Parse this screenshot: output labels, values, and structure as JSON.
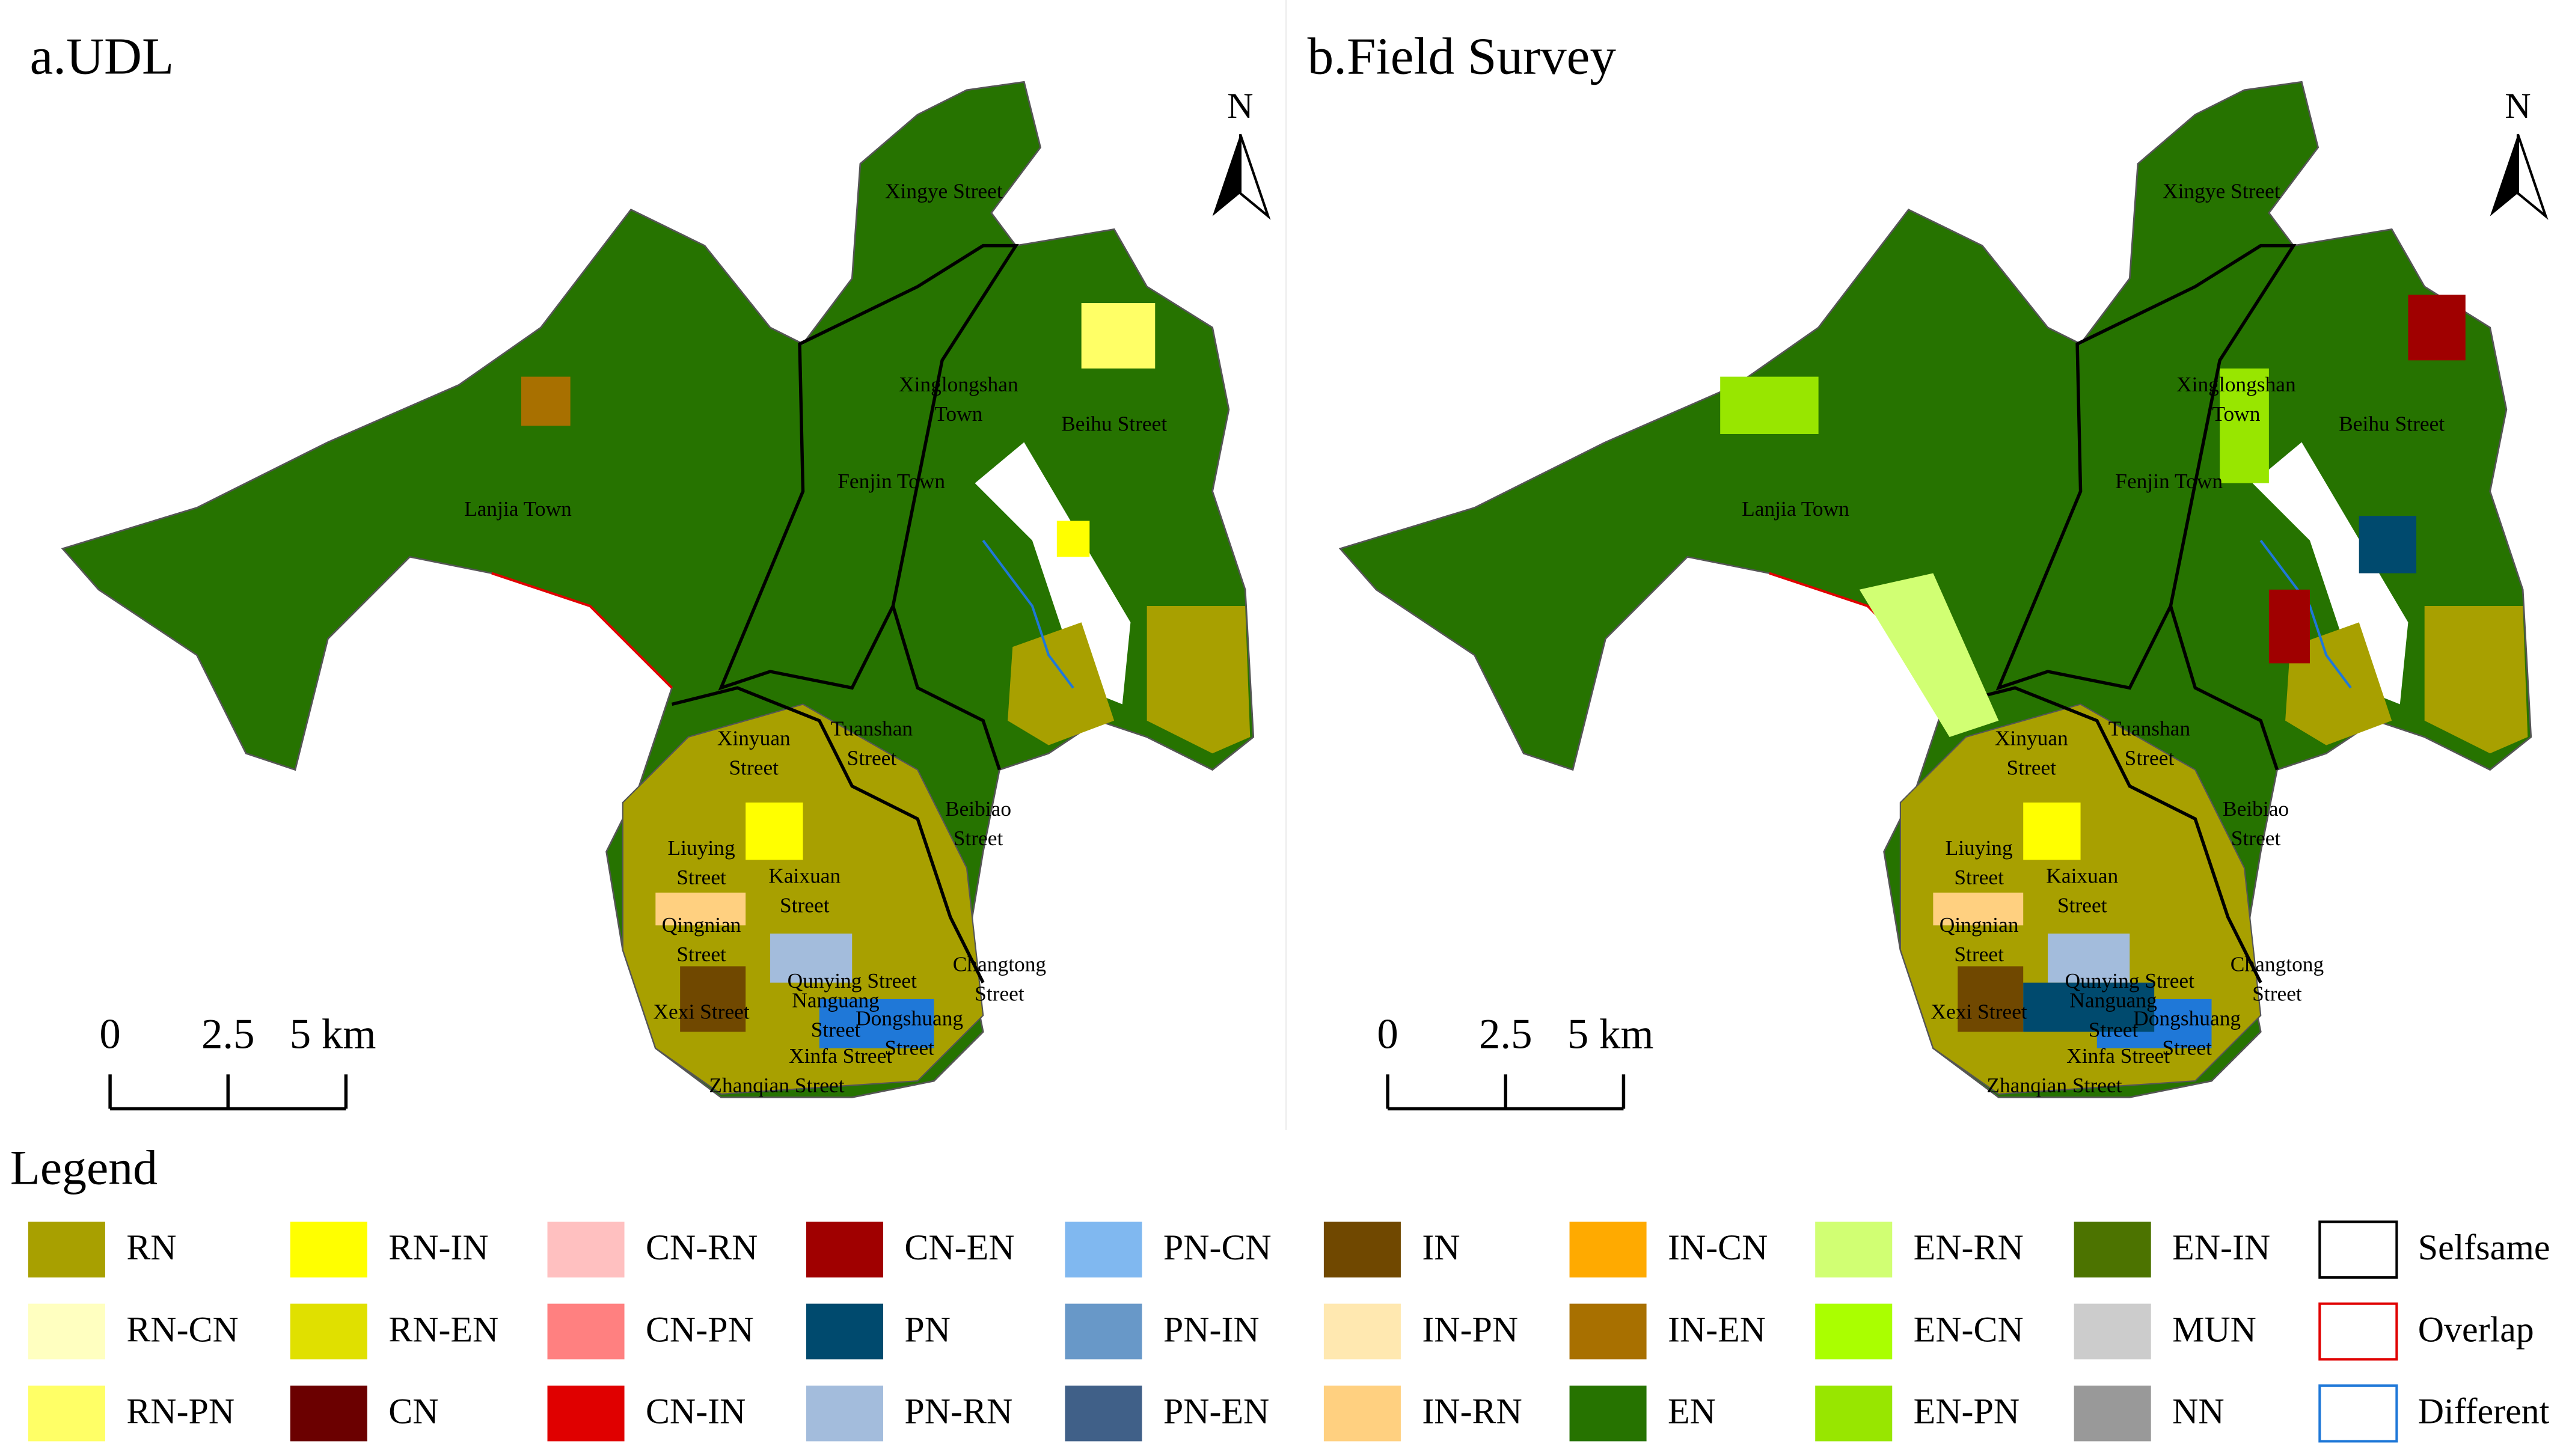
{
  "panels": [
    {
      "title": "a.UDL"
    },
    {
      "title": "b.Field Survey"
    }
  ],
  "north_label": "N",
  "scale_bar": [
    "0",
    "2.5",
    "5 km"
  ],
  "place_labels": [
    {
      "lines": [
        "Xingye Street"
      ]
    },
    {
      "lines": [
        "Xinglongshan",
        "Town"
      ]
    },
    {
      "lines": [
        "Beihu Street"
      ]
    },
    {
      "lines": [
        "Fenjin Town"
      ]
    },
    {
      "lines": [
        "Lanjia Town"
      ]
    },
    {
      "lines": [
        "Xinyuan",
        "Street"
      ]
    },
    {
      "lines": [
        "Tuanshan",
        "Street"
      ]
    },
    {
      "lines": [
        "Beibiao",
        "Street"
      ]
    },
    {
      "lines": [
        "Liuying",
        "Street"
      ]
    },
    {
      "lines": [
        "Kaixuan",
        "Street"
      ]
    },
    {
      "lines": [
        "Qingnian",
        "Street"
      ]
    },
    {
      "lines": [
        "Changtong",
        "Street"
      ]
    },
    {
      "lines": [
        "Qunying Street"
      ]
    },
    {
      "lines": [
        "Xexi Street"
      ]
    },
    {
      "lines": [
        "Nanguang",
        "Street"
      ]
    },
    {
      "lines": [
        "Dongshuang",
        "Street"
      ]
    },
    {
      "lines": [
        "Xinfa Street"
      ]
    },
    {
      "lines": [
        "Zhanqian Street"
      ]
    }
  ],
  "legend": {
    "title": "Legend",
    "items": [
      {
        "label": "RN",
        "color": "#a8a000"
      },
      {
        "label": "RN-CN",
        "color": "#ffffc0"
      },
      {
        "label": "RN-PN",
        "color": "#ffff66"
      },
      {
        "label": "RN-IN",
        "color": "#ffff00"
      },
      {
        "label": "RN-EN",
        "color": "#e0e000"
      },
      {
        "label": "CN",
        "color": "#6b0000"
      },
      {
        "label": "CN-RN",
        "color": "#ffc0c0"
      },
      {
        "label": "CN-PN",
        "color": "#ff8080"
      },
      {
        "label": "CN-IN",
        "color": "#e00000"
      },
      {
        "label": "CN-EN",
        "color": "#a00000"
      },
      {
        "label": "PN",
        "color": "#004a6e"
      },
      {
        "label": "PN-RN",
        "color": "#a3bcdc"
      },
      {
        "label": "PN-CN",
        "color": "#80b8f0"
      },
      {
        "label": "PN-IN",
        "color": "#6898c8"
      },
      {
        "label": "PN-EN",
        "color": "#406088"
      },
      {
        "label": "IN",
        "color": "#704800"
      },
      {
        "label": "IN-PN",
        "color": "#ffe8b0"
      },
      {
        "label": "IN-RN",
        "color": "#ffd080"
      },
      {
        "label": "IN-CN",
        "color": "#ffaa00"
      },
      {
        "label": "IN-EN",
        "color": "#a87000"
      },
      {
        "label": "EN",
        "color": "#267300"
      },
      {
        "label": "EN-RN",
        "color": "#d1ff73"
      },
      {
        "label": "EN-CN",
        "color": "#aaff00"
      },
      {
        "label": "EN-PN",
        "color": "#98e600"
      },
      {
        "label": "EN-IN",
        "color": "#4c7300"
      },
      {
        "label": "MUN",
        "color": "#cccccc"
      },
      {
        "label": "NN",
        "color": "#999999"
      },
      {
        "label": "Selfsame",
        "color": "#000000",
        "style": "outline"
      },
      {
        "label": "Overlap",
        "color": "#e00000",
        "style": "outline"
      },
      {
        "label": "Different",
        "color": "#1f78d8",
        "style": "outline"
      }
    ]
  }
}
